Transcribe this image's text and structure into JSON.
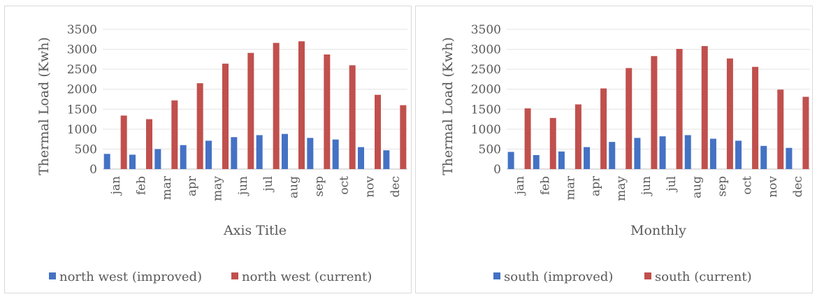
{
  "chart_data": [
    {
      "type": "bar",
      "categories": [
        "jan",
        "feb",
        "mar",
        "apr",
        "may",
        "jun",
        "jul",
        "aug",
        "sep",
        "oct",
        "nov",
        "dec"
      ],
      "series": [
        {
          "name": "north west (improved)",
          "values": [
            380,
            360,
            500,
            600,
            710,
            800,
            850,
            880,
            780,
            740,
            550,
            470
          ]
        },
        {
          "name": "north west (current)",
          "values": [
            1340,
            1250,
            1720,
            2150,
            2640,
            2910,
            3160,
            3200,
            2870,
            2600,
            1860,
            1600
          ]
        }
      ],
      "colors": [
        "#4472c4",
        "#c0504d"
      ],
      "title": "",
      "xlabel": "Axis Title",
      "ylabel": "Thermal Load (Kwh)",
      "yticks": [
        "0",
        "500",
        "1000",
        "1500",
        "2000",
        "2500",
        "3000",
        "3500"
      ],
      "ylim": [
        0,
        3500
      ],
      "grid": true,
      "legend_position": "bottom"
    },
    {
      "type": "bar",
      "categories": [
        "jan",
        "feb",
        "mar",
        "apr",
        "may",
        "jun",
        "jul",
        "aug",
        "sep",
        "oct",
        "nov",
        "dec"
      ],
      "series": [
        {
          "name": "south (improved)",
          "values": [
            430,
            350,
            440,
            550,
            680,
            780,
            820,
            850,
            760,
            710,
            580,
            530
          ]
        },
        {
          "name": "south (current)",
          "values": [
            1520,
            1280,
            1620,
            2020,
            2530,
            2830,
            3010,
            3080,
            2770,
            2560,
            1990,
            1810
          ]
        }
      ],
      "colors": [
        "#4472c4",
        "#c0504d"
      ],
      "title": "",
      "xlabel": "Monthly",
      "ylabel": "Thermal Load (Kwh)",
      "yticks": [
        "0",
        "500",
        "1000",
        "1500",
        "2000",
        "2500",
        "3000",
        "3500"
      ],
      "ylim": [
        0,
        3500
      ],
      "grid": true,
      "legend_position": "bottom"
    }
  ]
}
